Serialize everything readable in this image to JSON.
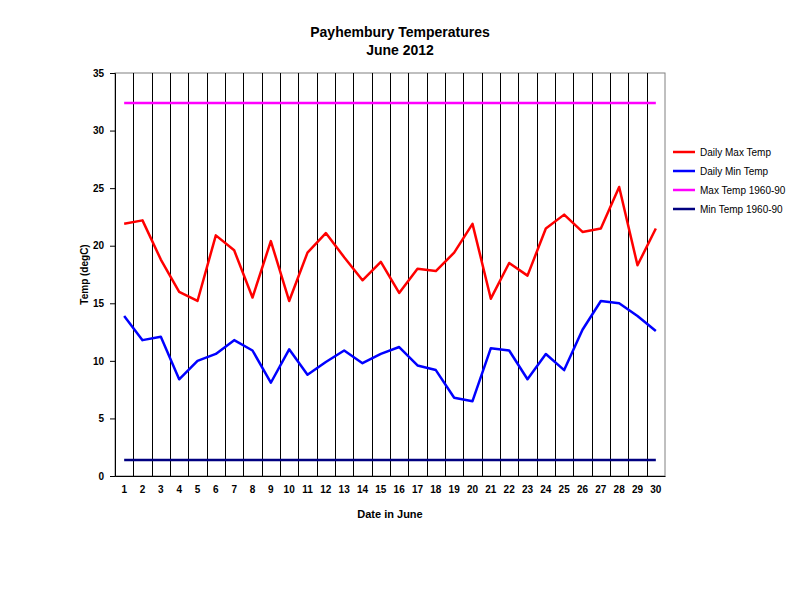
{
  "chart_data": {
    "type": "line",
    "title": "Payhembury Temperatures",
    "subtitle": "June 2012",
    "x_label": "Date in June",
    "y_label": "Temp (degC)",
    "categories": [
      "1",
      "2",
      "3",
      "4",
      "5",
      "6",
      "7",
      "8",
      "9",
      "10",
      "11",
      "12",
      "13",
      "14",
      "15",
      "16",
      "17",
      "18",
      "19",
      "20",
      "21",
      "22",
      "23",
      "24",
      "25",
      "26",
      "27",
      "28",
      "29",
      "30"
    ],
    "series": [
      {
        "name": "Daily Max Temp",
        "color": "#ff0000",
        "values": [
          21.9,
          22.2,
          18.8,
          16.0,
          15.2,
          20.9,
          19.6,
          15.5,
          20.4,
          15.2,
          19.4,
          21.1,
          19.0,
          17.0,
          18.6,
          15.9,
          18.0,
          17.8,
          19.4,
          21.9,
          15.4,
          18.5,
          17.4,
          21.5,
          22.7,
          21.2,
          21.5,
          25.1,
          18.3,
          21.5
        ]
      },
      {
        "name": "Daily Min Temp",
        "color": "#0000ff",
        "values": [
          13.9,
          11.8,
          12.1,
          8.4,
          10.0,
          10.6,
          11.8,
          10.9,
          8.1,
          11.0,
          8.8,
          9.9,
          10.9,
          9.8,
          10.6,
          11.2,
          9.6,
          9.2,
          6.8,
          6.5,
          11.1,
          10.9,
          8.4,
          10.6,
          9.2,
          12.7,
          15.2,
          15.0,
          13.9,
          12.6
        ]
      },
      {
        "name": "Max Temp 1960-90",
        "color": "#ff00ff",
        "values": [
          32.4,
          32.4,
          32.4,
          32.4,
          32.4,
          32.4,
          32.4,
          32.4,
          32.4,
          32.4,
          32.4,
          32.4,
          32.4,
          32.4,
          32.4,
          32.4,
          32.4,
          32.4,
          32.4,
          32.4,
          32.4,
          32.4,
          32.4,
          32.4,
          32.4,
          32.4,
          32.4,
          32.4,
          32.4,
          32.4
        ]
      },
      {
        "name": "Min Temp 1960-90",
        "color": "#000080",
        "values": [
          1.4,
          1.4,
          1.4,
          1.4,
          1.4,
          1.4,
          1.4,
          1.4,
          1.4,
          1.4,
          1.4,
          1.4,
          1.4,
          1.4,
          1.4,
          1.4,
          1.4,
          1.4,
          1.4,
          1.4,
          1.4,
          1.4,
          1.4,
          1.4,
          1.4,
          1.4,
          1.4,
          1.4,
          1.4,
          1.4
        ]
      }
    ],
    "ylim": [
      0,
      35
    ],
    "yticks": [
      0,
      5,
      10,
      15,
      20,
      25,
      30,
      35
    ],
    "grid": true,
    "legend": "right"
  }
}
